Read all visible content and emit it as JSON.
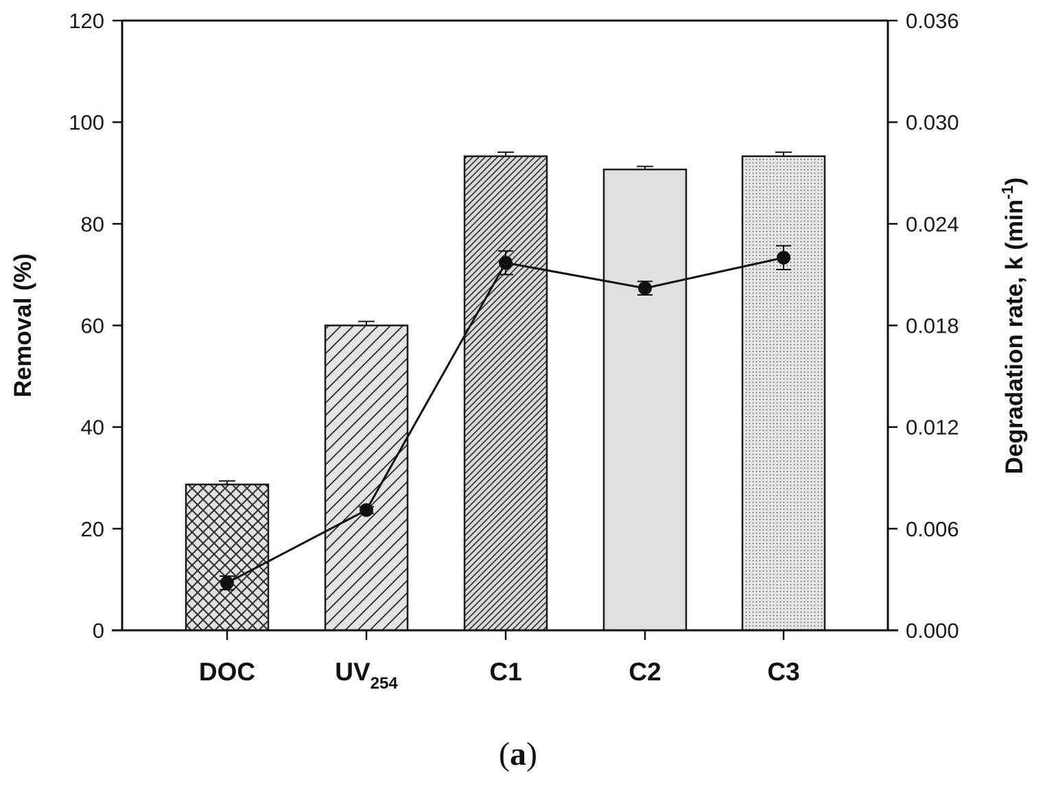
{
  "chart_data": {
    "type": "bar",
    "categories": [
      "DOC",
      "UV254",
      "C1",
      "C2",
      "C3"
    ],
    "category_labels": [
      {
        "main": "DOC",
        "sub": ""
      },
      {
        "main": "UV",
        "sub": "254"
      },
      {
        "main": "C1",
        "sub": ""
      },
      {
        "main": "C2",
        "sub": ""
      },
      {
        "main": "C3",
        "sub": ""
      }
    ],
    "series": [
      {
        "name": "Removal (%)",
        "axis": "left",
        "kind": "bar",
        "values": [
          28.7,
          60.0,
          93.3,
          90.7,
          93.3
        ],
        "errors": [
          0.7,
          0.8,
          0.8,
          0.6,
          0.8
        ],
        "patterns": [
          "crosshatch",
          "diagonal-wide",
          "diagonal-dense",
          "solid-light",
          "dots"
        ]
      },
      {
        "name": "Degradation rate, k",
        "axis": "right",
        "kind": "line",
        "values": [
          0.0028,
          0.0071,
          0.0217,
          0.0202,
          0.022
        ],
        "errors": [
          0.0004,
          0.0002,
          0.0007,
          0.0004,
          0.0007
        ]
      }
    ],
    "ylabel": "Removal (%)",
    "y2label_main": "Degradation rate, k (min",
    "y2label_sup": "-1",
    "y2label_close": ")",
    "ylim": [
      0,
      120
    ],
    "y2lim": [
      0,
      0.036
    ],
    "yticks": [
      "0",
      "20",
      "40",
      "60",
      "80",
      "100",
      "120"
    ],
    "y2ticks": [
      "0.000",
      "0.006",
      "0.012",
      "0.018",
      "0.024",
      "0.030",
      "0.036"
    ],
    "panel_label_open": "(",
    "panel_label_letter": "a",
    "panel_label_close": ")"
  },
  "colors": {
    "bar_fill": "#e0e0e0",
    "bar_stroke": "#1a1a1a",
    "line": "#111111",
    "marker": "#111111"
  }
}
